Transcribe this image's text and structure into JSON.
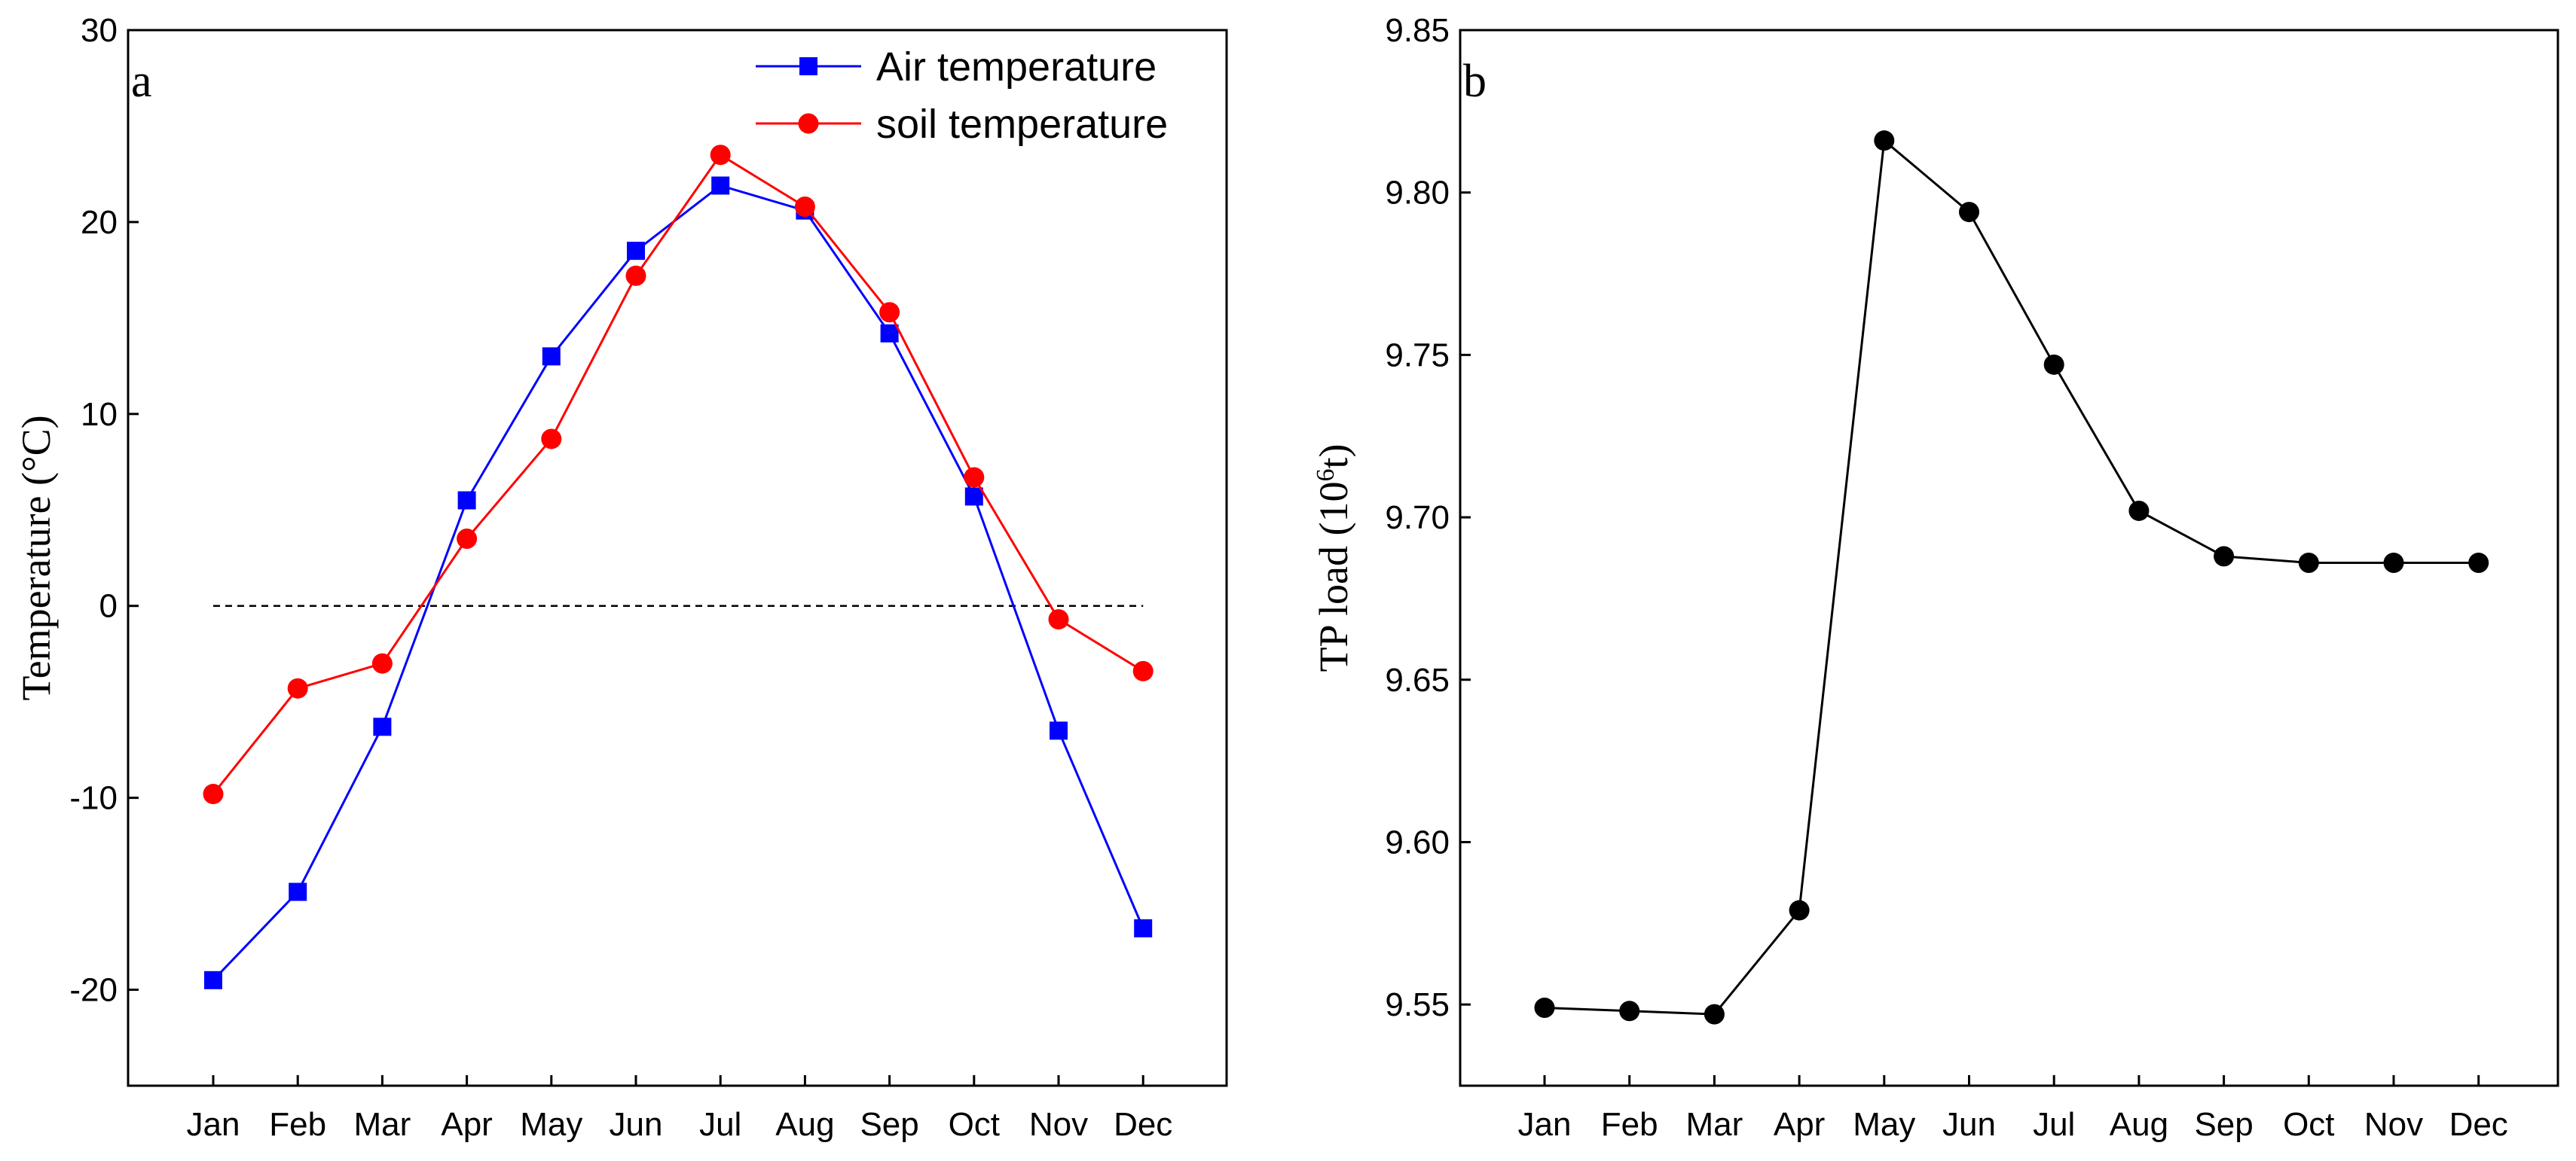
{
  "chart_data": [
    {
      "type": "line",
      "panel_label": "a",
      "categories": [
        "Jan",
        "Feb",
        "Mar",
        "Apr",
        "May",
        "Jun",
        "Jul",
        "Aug",
        "Sep",
        "Oct",
        "Nov",
        "Dec"
      ],
      "ylabel": "Temperature (°C)",
      "xlabel": "",
      "ylim": [
        -25,
        30
      ],
      "yticks": [
        "-20",
        "-10",
        "0",
        "10",
        "20",
        "30"
      ],
      "reference_line_y": 0,
      "legend_position": "top-right",
      "series": [
        {
          "name": "Air temperature",
          "marker": "square",
          "color": "#0000ff",
          "values": [
            -19.5,
            -14.9,
            -6.3,
            5.5,
            13.0,
            18.5,
            21.9,
            20.6,
            14.2,
            5.7,
            -6.5,
            -16.8
          ]
        },
        {
          "name": "soil temperature",
          "marker": "circle",
          "color": "#ff0000",
          "values": [
            -9.8,
            -4.3,
            -3.0,
            3.5,
            8.7,
            17.2,
            23.5,
            20.8,
            15.3,
            6.7,
            -0.7,
            -3.4
          ]
        }
      ]
    },
    {
      "type": "line",
      "panel_label": "b",
      "categories": [
        "Jan",
        "Feb",
        "Mar",
        "Apr",
        "May",
        "Jun",
        "Jul",
        "Aug",
        "Sep",
        "Oct",
        "Nov",
        "Dec"
      ],
      "ylabel_main": "TP load (10",
      "ylabel_sup": "6",
      "ylabel_tail": "t)",
      "xlabel": "",
      "ylim": [
        9.525,
        9.85
      ],
      "yticks": [
        "9.55",
        "9.60",
        "9.65",
        "9.70",
        "9.75",
        "9.80",
        "9.85"
      ],
      "series": [
        {
          "name": "TP load",
          "marker": "circle",
          "color": "#000000",
          "values": [
            9.549,
            9.548,
            9.547,
            9.579,
            9.816,
            9.794,
            9.747,
            9.702,
            9.688,
            9.686,
            9.686,
            9.686
          ]
        }
      ]
    }
  ]
}
